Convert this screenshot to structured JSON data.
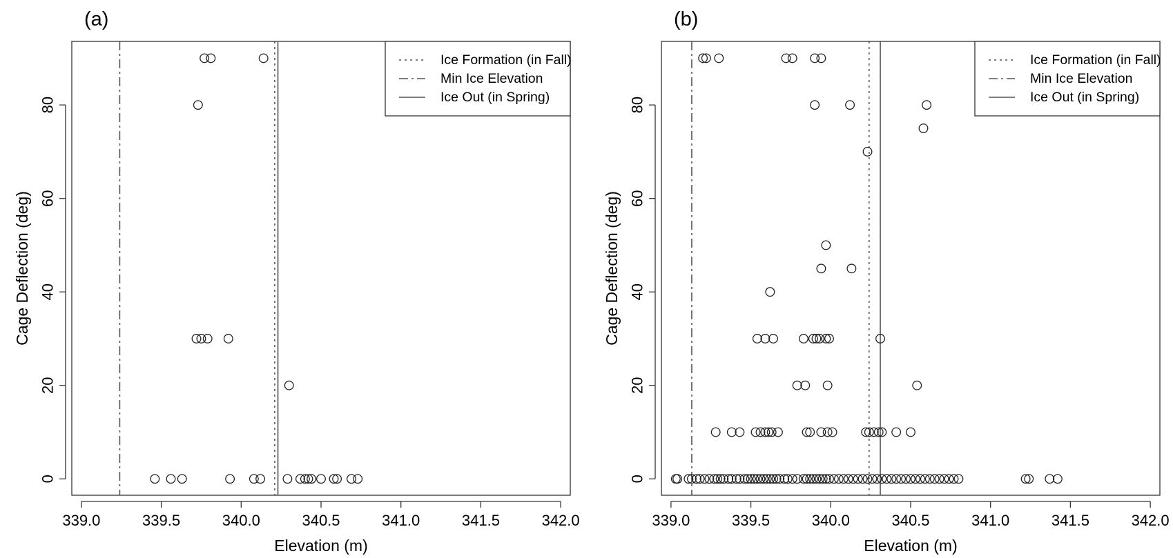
{
  "chart_data": [
    {
      "type": "scatter",
      "panel_label": "(a)",
      "xlabel": "Elevation (m)",
      "ylabel": "Cage Deflection (deg)",
      "xlim": [
        338.94,
        342.06
      ],
      "ylim": [
        -3.5,
        93.6
      ],
      "xticks": [
        "339.0",
        "339.5",
        "340.0",
        "340.5",
        "341.0",
        "341.5",
        "342.0"
      ],
      "yticks": [
        "0",
        "20",
        "40",
        "60",
        "80"
      ],
      "legend_position": "top-right",
      "legend": [
        {
          "label": "Ice Formation (in Fall)",
          "line_style": "dotted"
        },
        {
          "label": "Min Ice Elevation",
          "line_style": "dashdot"
        },
        {
          "label": "Ice Out (in Spring)",
          "line_style": "solid"
        }
      ],
      "vertical_lines": [
        {
          "x": 340.21,
          "line_style": "dotted"
        },
        {
          "x": 339.24,
          "line_style": "dashdot"
        },
        {
          "x": 340.23,
          "line_style": "solid"
        }
      ],
      "points": [
        [
          339.77,
          90
        ],
        [
          339.81,
          90
        ],
        [
          340.14,
          90
        ],
        [
          339.73,
          80
        ],
        [
          339.72,
          30
        ],
        [
          339.75,
          30
        ],
        [
          339.79,
          30
        ],
        [
          339.92,
          30
        ],
        [
          340.3,
          20
        ],
        [
          339.46,
          0
        ],
        [
          339.56,
          0
        ],
        [
          339.63,
          0
        ],
        [
          339.93,
          0
        ],
        [
          340.08,
          0
        ],
        [
          340.12,
          0
        ],
        [
          340.29,
          0
        ],
        [
          340.37,
          0
        ],
        [
          340.4,
          0
        ],
        [
          340.42,
          0
        ],
        [
          340.44,
          0
        ],
        [
          340.5,
          0
        ],
        [
          340.58,
          0
        ],
        [
          340.6,
          0
        ],
        [
          340.69,
          0
        ],
        [
          340.73,
          0
        ]
      ]
    },
    {
      "type": "scatter",
      "panel_label": "(b)",
      "xlabel": "Elevation (m)",
      "ylabel": "Cage Deflection (deg)",
      "xlim": [
        338.94,
        342.06
      ],
      "ylim": [
        -3.5,
        93.6
      ],
      "xticks": [
        "339.0",
        "339.5",
        "340.0",
        "340.5",
        "341.0",
        "341.5",
        "342.0"
      ],
      "yticks": [
        "0",
        "20",
        "40",
        "60",
        "80"
      ],
      "legend_position": "top-right",
      "legend": [
        {
          "label": "Ice Formation (in Fall)",
          "line_style": "dotted"
        },
        {
          "label": "Min Ice Elevation",
          "line_style": "dashdot"
        },
        {
          "label": "Ice Out (in Spring)",
          "line_style": "solid"
        }
      ],
      "vertical_lines": [
        {
          "x": 340.24,
          "line_style": "dotted"
        },
        {
          "x": 339.13,
          "line_style": "dashdot"
        },
        {
          "x": 340.31,
          "line_style": "solid"
        }
      ],
      "points": [
        [
          339.2,
          90
        ],
        [
          339.22,
          90
        ],
        [
          339.3,
          90
        ],
        [
          339.72,
          90
        ],
        [
          339.76,
          90
        ],
        [
          339.9,
          90
        ],
        [
          339.94,
          90
        ],
        [
          339.9,
          80
        ],
        [
          340.12,
          80
        ],
        [
          340.6,
          80
        ],
        [
          340.58,
          75
        ],
        [
          340.23,
          70
        ],
        [
          339.97,
          50
        ],
        [
          339.94,
          45
        ],
        [
          340.13,
          45
        ],
        [
          339.62,
          40
        ],
        [
          339.54,
          30
        ],
        [
          339.59,
          30
        ],
        [
          339.64,
          30
        ],
        [
          339.83,
          30
        ],
        [
          339.89,
          30
        ],
        [
          339.91,
          30
        ],
        [
          339.93,
          30
        ],
        [
          339.97,
          30
        ],
        [
          339.99,
          30
        ],
        [
          340.31,
          30
        ],
        [
          339.79,
          20
        ],
        [
          339.84,
          20
        ],
        [
          339.98,
          20
        ],
        [
          340.54,
          20
        ],
        [
          339.28,
          10
        ],
        [
          339.38,
          10
        ],
        [
          339.43,
          10
        ],
        [
          339.53,
          10
        ],
        [
          339.56,
          10
        ],
        [
          339.59,
          10
        ],
        [
          339.61,
          10
        ],
        [
          339.63,
          10
        ],
        [
          339.67,
          10
        ],
        [
          339.85,
          10
        ],
        [
          339.87,
          10
        ],
        [
          339.94,
          10
        ],
        [
          339.98,
          10
        ],
        [
          340.01,
          10
        ],
        [
          340.22,
          10
        ],
        [
          340.24,
          10
        ],
        [
          340.27,
          10
        ],
        [
          340.3,
          10
        ],
        [
          340.32,
          10
        ],
        [
          340.41,
          10
        ],
        [
          340.5,
          10
        ],
        [
          339.03,
          0
        ],
        [
          339.04,
          0
        ],
        [
          339.11,
          0
        ],
        [
          339.13,
          0
        ],
        [
          339.16,
          0
        ],
        [
          339.18,
          0
        ],
        [
          339.21,
          0
        ],
        [
          339.24,
          0
        ],
        [
          339.27,
          0
        ],
        [
          339.29,
          0
        ],
        [
          339.31,
          0
        ],
        [
          339.33,
          0
        ],
        [
          339.36,
          0
        ],
        [
          339.38,
          0
        ],
        [
          339.41,
          0
        ],
        [
          339.43,
          0
        ],
        [
          339.46,
          0
        ],
        [
          339.48,
          0
        ],
        [
          339.5,
          0
        ],
        [
          339.52,
          0
        ],
        [
          339.54,
          0
        ],
        [
          339.56,
          0
        ],
        [
          339.58,
          0
        ],
        [
          339.6,
          0
        ],
        [
          339.62,
          0
        ],
        [
          339.64,
          0
        ],
        [
          339.66,
          0
        ],
        [
          339.68,
          0
        ],
        [
          339.71,
          0
        ],
        [
          339.73,
          0
        ],
        [
          339.76,
          0
        ],
        [
          339.79,
          0
        ],
        [
          339.83,
          0
        ],
        [
          339.85,
          0
        ],
        [
          339.87,
          0
        ],
        [
          339.89,
          0
        ],
        [
          339.91,
          0
        ],
        [
          339.93,
          0
        ],
        [
          339.95,
          0
        ],
        [
          339.97,
          0
        ],
        [
          339.99,
          0
        ],
        [
          340.02,
          0
        ],
        [
          340.05,
          0
        ],
        [
          340.08,
          0
        ],
        [
          340.11,
          0
        ],
        [
          340.14,
          0
        ],
        [
          340.17,
          0
        ],
        [
          340.2,
          0
        ],
        [
          340.23,
          0
        ],
        [
          340.26,
          0
        ],
        [
          340.29,
          0
        ],
        [
          340.32,
          0
        ],
        [
          340.35,
          0
        ],
        [
          340.38,
          0
        ],
        [
          340.41,
          0
        ],
        [
          340.44,
          0
        ],
        [
          340.47,
          0
        ],
        [
          340.5,
          0
        ],
        [
          340.53,
          0
        ],
        [
          340.56,
          0
        ],
        [
          340.59,
          0
        ],
        [
          340.62,
          0
        ],
        [
          340.65,
          0
        ],
        [
          340.68,
          0
        ],
        [
          340.71,
          0
        ],
        [
          340.74,
          0
        ],
        [
          340.77,
          0
        ],
        [
          340.8,
          0
        ],
        [
          341.22,
          0
        ],
        [
          341.24,
          0
        ],
        [
          341.37,
          0
        ],
        [
          341.42,
          0
        ]
      ]
    }
  ]
}
